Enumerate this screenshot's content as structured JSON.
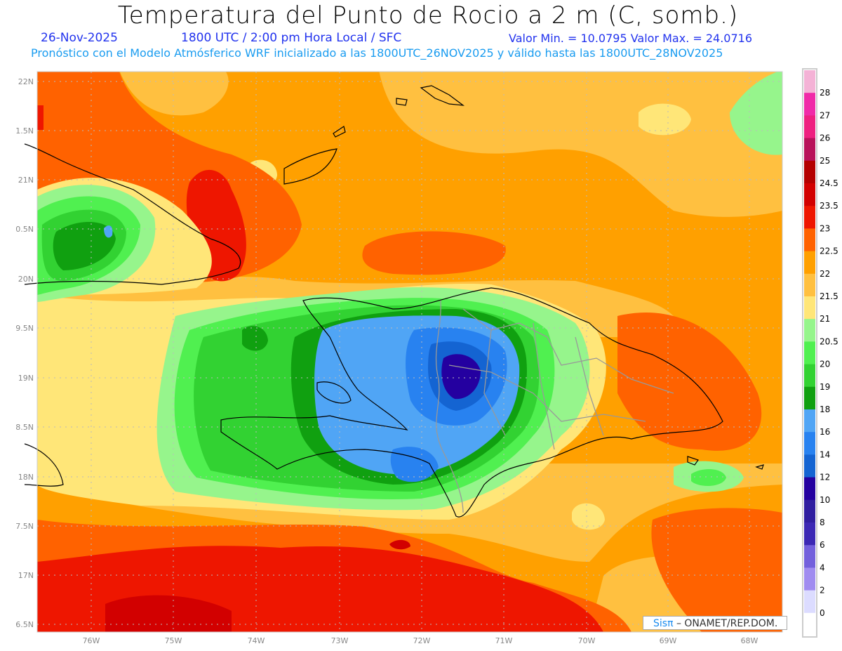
{
  "header": {
    "title": "Temperatura del Punto de Rocio a 2 m (C, somb.)",
    "date": "26-Nov-2025",
    "time": "1800 UTC / 2:00 pm Hora Local / SFC",
    "minmax": "Valor Min. = 10.0795  Valor Max. = 24.0716",
    "model_line": "Pronóstico con el Modelo Atmósferico WRF inicializado a las 1800UTC_26NOV2025 y válido hasta las  1800UTC_28NOV2025"
  },
  "axes": {
    "lon_labels": [
      "76W",
      "75W",
      "74W",
      "73W",
      "72W",
      "71W",
      "70W",
      "69W",
      "68W"
    ],
    "lat_labels": [
      "22N",
      "1.5N",
      "21N",
      "0.5N",
      "20N",
      "9.5N",
      "19N",
      "8.5N",
      "18N",
      "7.5N",
      "17N",
      "6.5N"
    ]
  },
  "colorbar": {
    "labels": [
      "28",
      "27",
      "26",
      "25",
      "24.5",
      "23.5",
      "23",
      "22.5",
      "22",
      "21.5",
      "21",
      "20.5",
      "20",
      "19",
      "18",
      "16",
      "14",
      "12",
      "10",
      "8",
      "6",
      "4",
      "2",
      "0"
    ],
    "colors": [
      "#f4b2d6",
      "#f02aa8",
      "#ee2080",
      "#b8125a",
      "#b40000",
      "#d20000",
      "#ee1600",
      "#ff6200",
      "#ffa000",
      "#ffc040",
      "#ffe678",
      "#96f58c",
      "#50f050",
      "#32d232",
      "#10a010",
      "#50a5f5",
      "#2882f0",
      "#1464d2",
      "#2400a0",
      "#301ea0",
      "#3c28b4",
      "#7360dc",
      "#a08cf0",
      "#dcdcff",
      "#ffffff"
    ]
  },
  "credit": {
    "brand": "Sisπ",
    "text": " –  ONAMET/REP.DOM."
  }
}
